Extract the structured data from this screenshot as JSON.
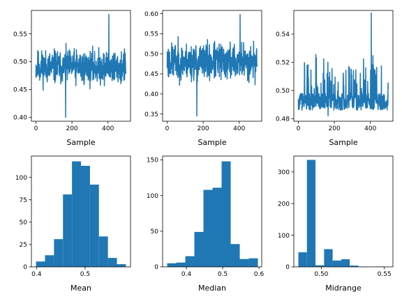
{
  "colors": {
    "series": "#1f77b4",
    "axis": "#000000",
    "background": "#ffffff"
  },
  "chart_data": [
    {
      "id": "mean-trace",
      "type": "line",
      "title": "",
      "xlabel": "Sample",
      "ylabel": "",
      "xlim": [
        -25,
        525
      ],
      "ylim": [
        0.393,
        0.592
      ],
      "xticks": [
        0,
        200,
        400
      ],
      "xtick_labels": [
        "0",
        "200",
        "400"
      ],
      "yticks": [
        0.4,
        0.45,
        0.5,
        0.55
      ],
      "ytick_labels": [
        "0.40",
        "0.45",
        "0.50",
        "0.55"
      ],
      "series": [
        {
          "n": 500,
          "baseline": 0.49,
          "spread": 0.03,
          "min": 0.4,
          "max": 0.585,
          "seed": 11
        }
      ]
    },
    {
      "id": "median-trace",
      "type": "line",
      "title": "",
      "xlabel": "Sample",
      "ylabel": "",
      "xlim": [
        -25,
        525
      ],
      "ylim": [
        0.332,
        0.608
      ],
      "xticks": [
        0,
        200,
        400
      ],
      "xtick_labels": [
        "0",
        "200",
        "400"
      ],
      "yticks": [
        0.35,
        0.4,
        0.45,
        0.5,
        0.55,
        0.6
      ],
      "ytick_labels": [
        "0.35",
        "0.40",
        "0.45",
        "0.50",
        "0.55",
        "0.60"
      ],
      "series": [
        {
          "n": 500,
          "baseline": 0.48,
          "spread": 0.045,
          "min": 0.345,
          "max": 0.598,
          "seed": 23
        }
      ]
    },
    {
      "id": "midrange-trace",
      "type": "line",
      "title": "",
      "xlabel": "Sample",
      "ylabel": "",
      "xlim": [
        -25,
        525
      ],
      "ylim": [
        0.4782,
        0.5568
      ],
      "xticks": [
        0,
        200,
        400
      ],
      "xtick_labels": [
        "0",
        "200",
        "400"
      ],
      "yticks": [
        0.48,
        0.5,
        0.52,
        0.54
      ],
      "ytick_labels": [
        "0.48",
        "0.50",
        "0.52",
        "0.54"
      ],
      "series": [
        {
          "n": 500,
          "baseline": 0.492,
          "spread": 0.006,
          "min": 0.482,
          "max": 0.555,
          "seed": 37,
          "skew": true
        }
      ]
    },
    {
      "id": "mean-hist",
      "type": "bar",
      "title": "",
      "xlabel": "Mean",
      "ylabel": "",
      "xlim": [
        0.3895,
        0.5935
      ],
      "ylim": [
        0,
        123.9
      ],
      "xticks": [
        0.4,
        0.5
      ],
      "xtick_labels": [
        "0.4",
        "0.5"
      ],
      "yticks": [
        0,
        25,
        50,
        75,
        100
      ],
      "ytick_labels": [
        "0",
        "25",
        "50",
        "75",
        "100"
      ],
      "bin_edges": [
        0.399,
        0.4175,
        0.436,
        0.4545,
        0.473,
        0.4915,
        0.51,
        0.5285,
        0.547,
        0.5655,
        0.584
      ],
      "values": [
        6,
        13,
        31,
        81,
        118,
        113,
        92,
        34,
        10,
        3
      ]
    },
    {
      "id": "median-hist",
      "type": "bar",
      "title": "",
      "xlabel": "Median",
      "ylabel": "",
      "xlim": [
        0.3345,
        0.6075
      ],
      "ylim": [
        0,
        155.4
      ],
      "xticks": [
        0.4,
        0.5,
        0.6
      ],
      "xtick_labels": [
        "0.4",
        "0.5",
        "0.6"
      ],
      "yticks": [
        0,
        50,
        100,
        150
      ],
      "ytick_labels": [
        "0",
        "50",
        "100",
        "150"
      ],
      "bin_edges": [
        0.347,
        0.372,
        0.397,
        0.422,
        0.447,
        0.472,
        0.497,
        0.522,
        0.547,
        0.572,
        0.597
      ],
      "values": [
        5,
        6,
        15,
        49,
        108,
        111,
        148,
        32,
        11,
        12
      ]
    },
    {
      "id": "midrange-hist",
      "type": "bar",
      "title": "",
      "xlabel": "Midrange",
      "ylabel": "",
      "xlim": [
        0.4782,
        0.5568
      ],
      "ylim": [
        0,
        350
      ],
      "xticks": [
        0.5,
        0.55
      ],
      "xtick_labels": [
        "0.50",
        "0.55"
      ],
      "yticks": [
        0,
        100,
        200,
        300
      ],
      "ytick_labels": [
        "0",
        "100",
        "200",
        "300"
      ],
      "bin_edges": [
        0.4818,
        0.4886,
        0.4954,
        0.5022,
        0.509,
        0.5158,
        0.5226,
        0.5294,
        0.5362,
        0.543,
        0.5498
      ],
      "values": [
        46,
        338,
        5,
        56,
        20,
        24,
        4,
        1,
        0,
        1
      ]
    }
  ]
}
